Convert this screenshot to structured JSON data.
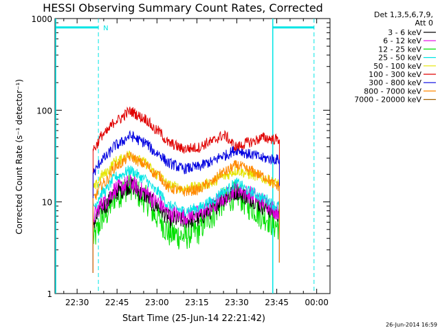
{
  "chart_data": {
    "type": "line",
    "title": "HESSI Observing Summary Count Rates, Corrected",
    "xlabel": "Start Time (25-Jun-14 22:21:42)",
    "ylabel": "Corrected Count Rate (s⁻¹ detector⁻¹)",
    "yscale": "log",
    "ylim": [
      1,
      1000
    ],
    "xlim": [
      "22:21:42",
      "00:05:00"
    ],
    "x_ticks": [
      "22:30",
      "22:45",
      "23:00",
      "23:15",
      "23:30",
      "23:45",
      "00:00"
    ],
    "y_ticks": [
      "1",
      "10",
      "100",
      "1000"
    ],
    "legend_header": [
      "Det 1,3,5,6,7,9,",
      "Att 0"
    ],
    "legend_position": "right",
    "footer": "26-Jun-2014 16:59",
    "data_interval": [
      "22:36:00",
      "23:46:00"
    ],
    "markers": {
      "night": [
        {
          "start": "22:21:42",
          "end": "22:38:00",
          "label": "N"
        },
        {
          "start": "23:43:30",
          "end": "23:59:00",
          "label": ""
        }
      ],
      "colour": "#00e5e5"
    },
    "x_times": [
      "22:36",
      "22:40",
      "22:45",
      "22:50",
      "22:55",
      "23:00",
      "23:05",
      "23:10",
      "23:15",
      "23:20",
      "23:25",
      "23:30",
      "23:35",
      "23:40",
      "23:45"
    ],
    "series": [
      {
        "name": "3 - 6 keV",
        "color": "#000000",
        "values": [
          6,
          9,
          13,
          15,
          12,
          9,
          6.5,
          6.3,
          6.5,
          8,
          11,
          13,
          11,
          9,
          7.5
        ]
      },
      {
        "name": "6 - 12 keV",
        "color": "#e000e0",
        "values": [
          7,
          10,
          14,
          16,
          13,
          10,
          7.5,
          7,
          7.3,
          8.5,
          11,
          14,
          12,
          10,
          8
        ]
      },
      {
        "name": "12 - 25 keV",
        "color": "#00e000",
        "values": [
          4,
          7,
          12,
          15,
          11,
          7,
          4.5,
          4.2,
          4.8,
          7,
          10,
          12,
          9,
          7,
          5.5
        ]
      },
      {
        "name": "25 - 50 keV",
        "color": "#00e5e5",
        "values": [
          9,
          13,
          19,
          22,
          18,
          13,
          9,
          8,
          8.5,
          10,
          13,
          16,
          13,
          11,
          9
        ]
      },
      {
        "name": "50 - 100 keV",
        "color": "#e5e500",
        "values": [
          14,
          20,
          28,
          33,
          27,
          20,
          15,
          14,
          14.5,
          16,
          19,
          22,
          20,
          18,
          16
        ]
      },
      {
        "name": "100 - 300 keV",
        "color": "#e00000",
        "values": [
          38,
          55,
          78,
          97,
          82,
          60,
          43,
          38,
          39,
          45,
          53,
          40,
          45,
          50,
          48
        ]
      },
      {
        "name": "300 - 800 keV",
        "color": "#0000e0",
        "values": [
          21,
          30,
          42,
          52,
          45,
          34,
          26,
          23,
          24,
          27,
          32,
          37,
          33,
          30,
          29
        ]
      },
      {
        "name": "800 - 7000 keV",
        "color": "#ff8800",
        "values": [
          11,
          16,
          25,
          31,
          26,
          20,
          14,
          13,
          13.5,
          16,
          21,
          25,
          22,
          19,
          15
        ]
      },
      {
        "name": "7000 - 20000 keV",
        "color": "#a06000",
        "values": []
      }
    ]
  }
}
